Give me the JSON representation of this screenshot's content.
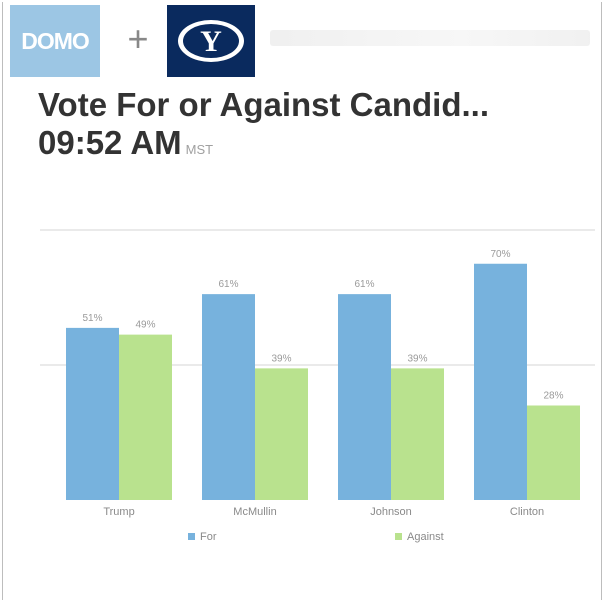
{
  "header": {
    "domo_logo": "DOMO",
    "plus": "+",
    "byu_logo": "Y"
  },
  "card": {
    "title": "Vote For or Against Candid...",
    "time": "09:52 AM",
    "timezone": "MST"
  },
  "colors": {
    "for": "#77b2dd",
    "against": "#b9e28e",
    "domo": "#9cc6e4",
    "byu": "#0a2a5e"
  },
  "chart_data": {
    "type": "bar",
    "categories": [
      "Trump",
      "McMullin",
      "Johnson",
      "Clinton"
    ],
    "series": [
      {
        "name": "For",
        "values": [
          51,
          61,
          61,
          70
        ],
        "labels": [
          "51%",
          "61%",
          "61%",
          "70%"
        ]
      },
      {
        "name": "Against",
        "values": [
          49,
          39,
          39,
          28
        ],
        "labels": [
          "49%",
          "39%",
          "39%",
          "28%"
        ]
      }
    ],
    "ylim": [
      0,
      80
    ],
    "grid": true,
    "legend_position": "bottom"
  }
}
